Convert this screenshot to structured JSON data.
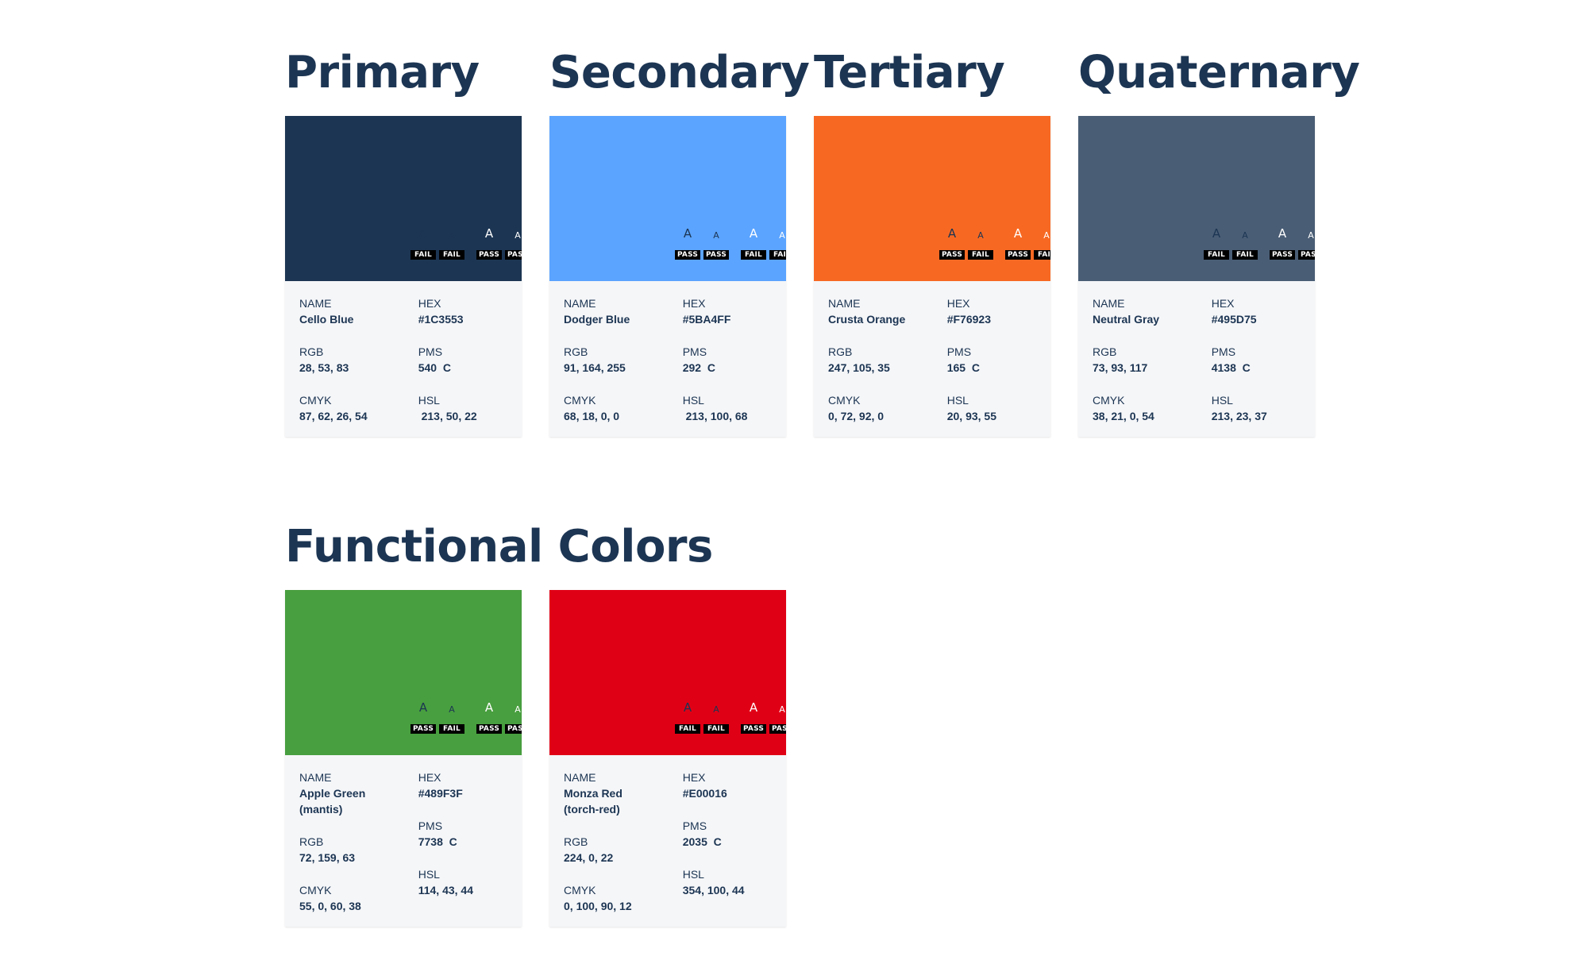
{
  "sections": {
    "brand_title": "Primary|Secondary|Tertiary|Quaternary",
    "functional_title": "Functional Colors"
  },
  "headings": [
    "Primary",
    "Secondary",
    "Tertiary",
    "Quaternary"
  ],
  "field_labels": {
    "name": "NAME",
    "hex": "HEX",
    "rgb": "RGB",
    "pms": "PMS",
    "cmyk": "CMYK",
    "hsl": "HSL"
  },
  "glyph": "A",
  "cards": [
    {
      "name": "Cello Blue",
      "hex": "#1C3553",
      "rgb": "28, 53, 83",
      "pms": "540  C",
      "cmyk": "87, 62, 26, 54",
      "hsl": " 213, 50, 22",
      "color": "#1C3553",
      "badges": [
        "FAIL",
        "FAIL",
        "PASS",
        "PASS"
      ],
      "dark_text_color": "#1C3553",
      "light_text_color": "#FFFFFF"
    },
    {
      "name": "Dodger Blue",
      "hex": "#5BA4FF",
      "rgb": "91, 164, 255",
      "pms": "292  C",
      "cmyk": "68, 18, 0, 0",
      "hsl": " 213, 100, 68",
      "color": "#5BA4FF",
      "badges": [
        "PASS",
        "PASS",
        "FAIL",
        "FAIL"
      ],
      "dark_text_color": "#1C3553",
      "light_text_color": "#FFFFFF"
    },
    {
      "name": "Crusta Orange",
      "hex": "#F76923",
      "rgb": "247, 105, 35",
      "pms": "165  C",
      "cmyk": "0, 72, 92, 0",
      "hsl": "20, 93, 55",
      "color": "#F76923",
      "badges": [
        "PASS",
        "FAIL",
        "PASS",
        "FAIL"
      ],
      "dark_text_color": "#1C3553",
      "light_text_color": "#FFFFFF"
    },
    {
      "name": "Neutral Gray",
      "hex": "#495D75",
      "rgb": "73, 93, 117",
      "pms": "4138  C",
      "cmyk": "38, 21, 0, 54",
      "hsl": "213, 23, 37",
      "color": "#495D75",
      "badges": [
        "FAIL",
        "FAIL",
        "PASS",
        "PASS"
      ],
      "dark_text_color": "#1C3553",
      "light_text_color": "#FFFFFF"
    },
    {
      "name": "Apple Green\n(mantis)",
      "hex": "#489F3F",
      "rgb": "72, 159, 63",
      "pms": "7738  C",
      "cmyk": "55, 0, 60, 38",
      "hsl": "114, 43, 44",
      "color": "#489F3F",
      "badges": [
        "PASS",
        "FAIL",
        "PASS",
        "PASS"
      ],
      "dark_text_color": "#1C3553",
      "light_text_color": "#FFFFFF"
    },
    {
      "name": "Monza Red\n(torch-red)",
      "hex": "#E00016",
      "rgb": "224, 0, 22",
      "pms": "2035  C",
      "cmyk": "0, 100, 90, 12",
      "hsl": "354, 100, 44",
      "color": "#E00016",
      "badges": [
        "FAIL",
        "FAIL",
        "PASS",
        "PASS"
      ],
      "dark_text_color": "#1C3553",
      "light_text_color": "#FFFFFF"
    }
  ]
}
